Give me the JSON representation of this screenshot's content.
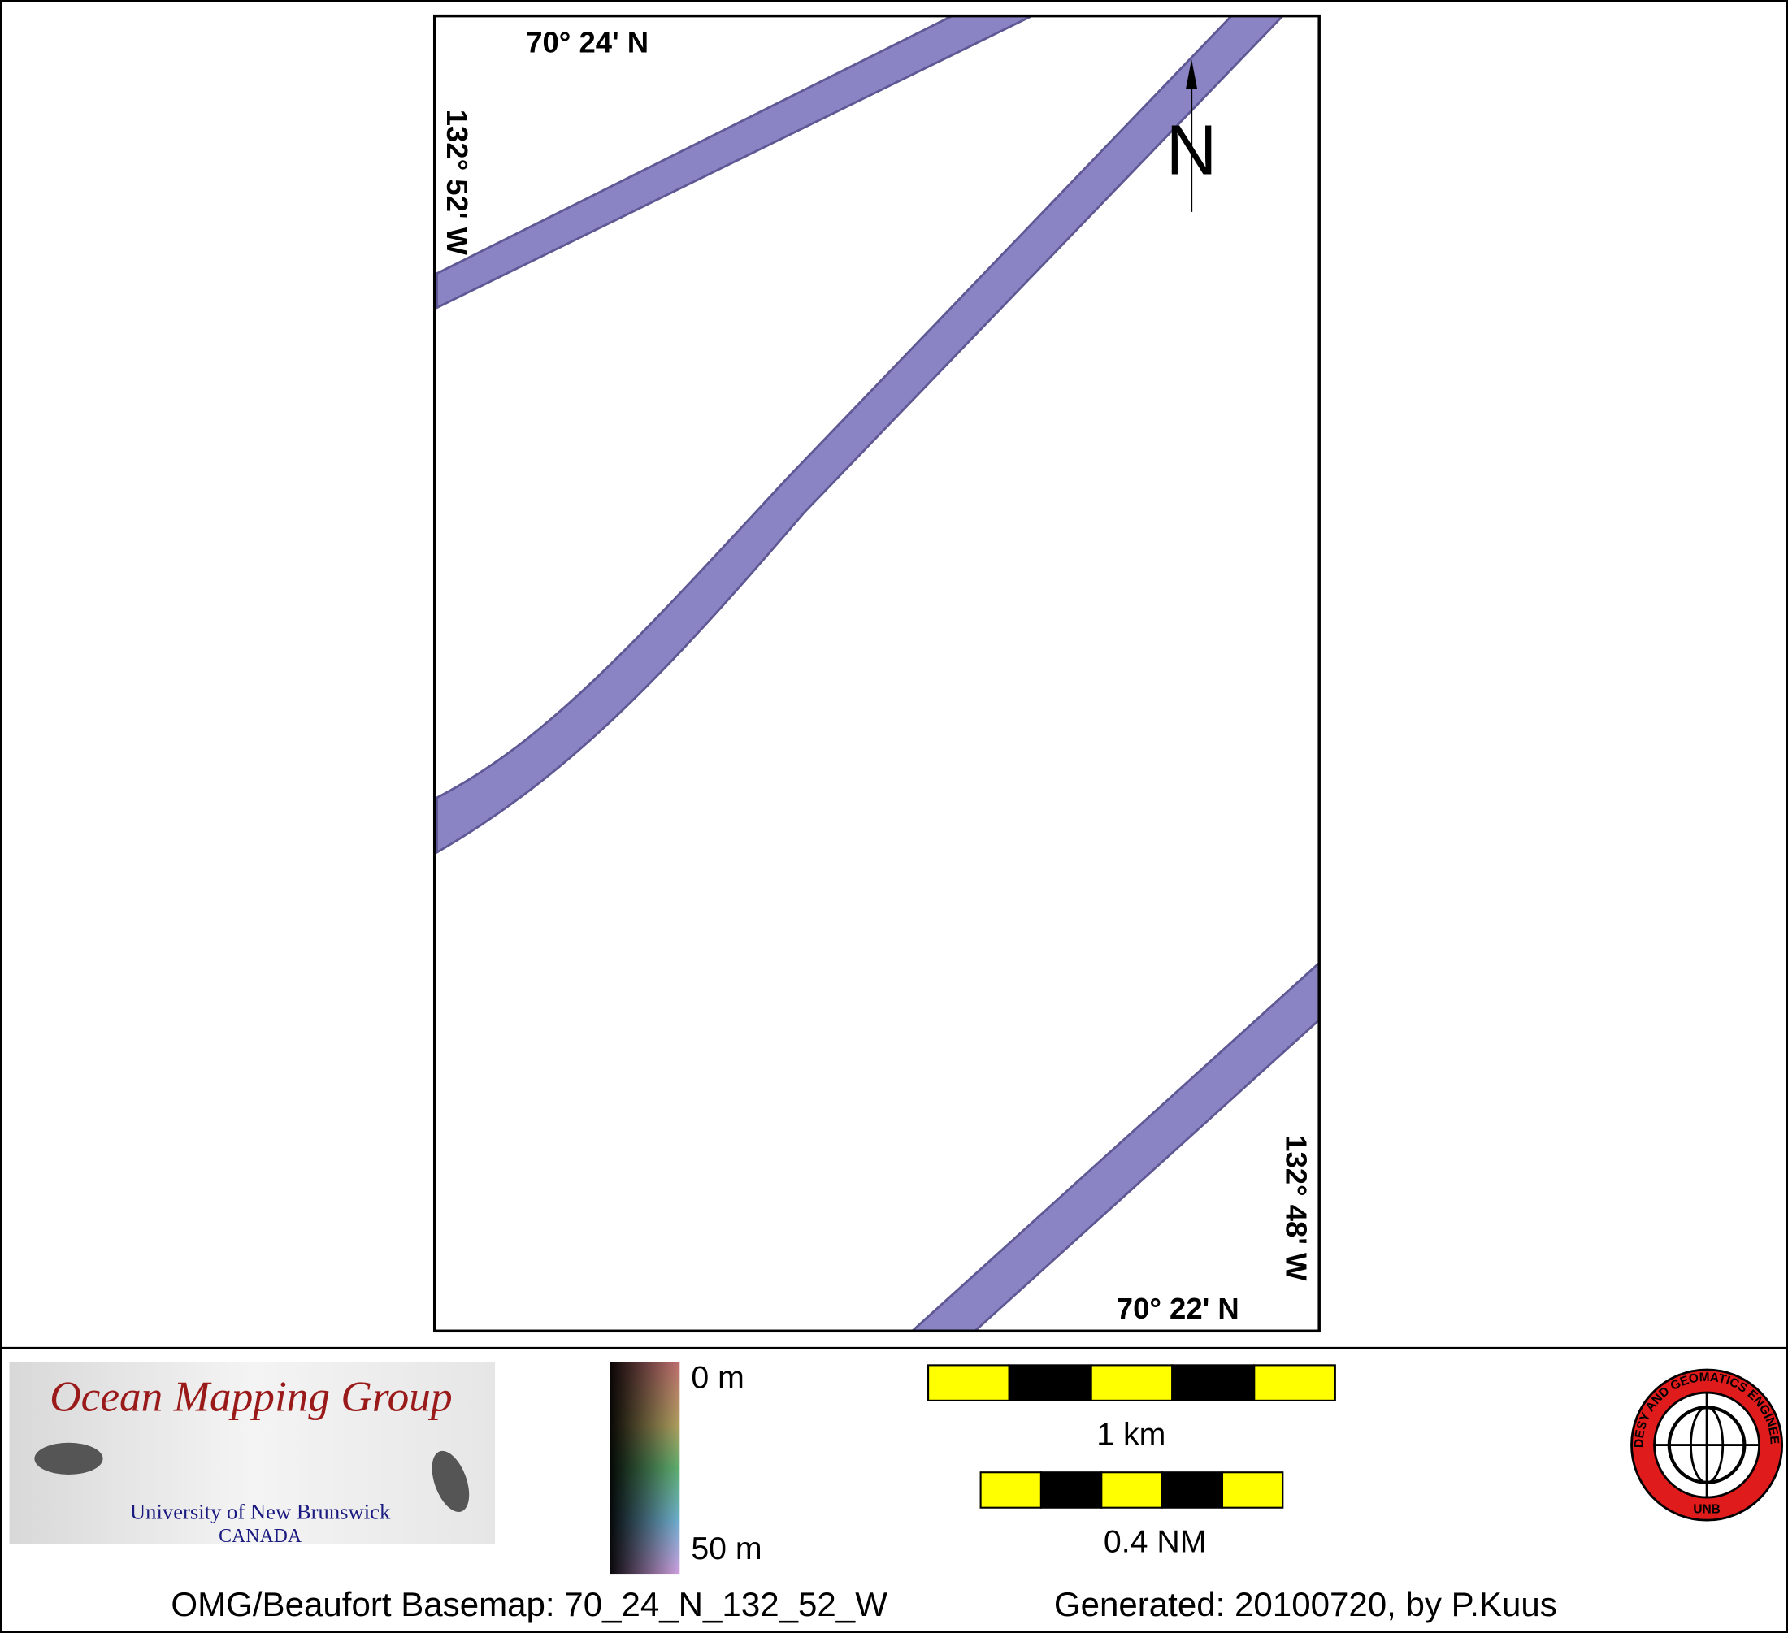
{
  "map": {
    "labels": {
      "top_lat": "70° 24' N",
      "left_lon": "132° 52' W",
      "bottom_lat": "70° 22' N",
      "right_lon": "132° 48' W",
      "north": "N"
    },
    "logo": {
      "title": "Ocean Mapping Group",
      "university": "University of New Brunswick",
      "country": "CANADA"
    },
    "depth_legend": {
      "top": "0 m",
      "bottom": "50 m"
    },
    "scale_bars": {
      "metric": "1 km",
      "nautical": "0.4 NM"
    },
    "seal": {
      "ring": "GEODESY AND GEOMATICS ENGINEERING",
      "bottom": "UNB"
    },
    "footer": {
      "basemap": "OMG/Beaufort Basemap: 70_24_N_132_52_W",
      "generated": "Generated: 20100720, by P.Kuus"
    }
  }
}
